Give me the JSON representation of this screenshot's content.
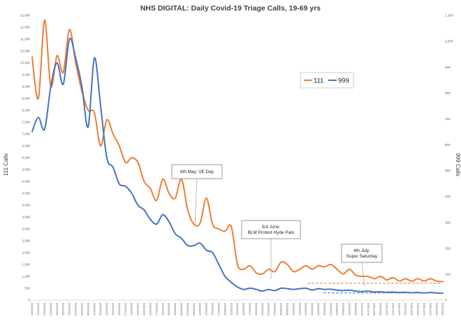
{
  "chart_data": {
    "type": "line",
    "title": "NHS DIGITAL: Daily Covid-19 Triage Calls, 19-69 yrs",
    "ylabel_left": "111 Calls",
    "ylabel_right": "999 Calls",
    "ylim_left": [
      0,
      12000
    ],
    "ylim_right": [
      0,
      1100
    ],
    "yticks_left": [
      "0",
      "500",
      "1,000",
      "1,500",
      "2,000",
      "2,500",
      "3,000",
      "3,500",
      "4,000",
      "4,500",
      "5,000",
      "5,500",
      "6,000",
      "6,500",
      "7,000",
      "7,500",
      "8,000",
      "8,500",
      "9,000",
      "9,500",
      "10,000",
      "10,500",
      "11,000",
      "11,500",
      "12,000"
    ],
    "yticks_right": [
      "0",
      "100",
      "200",
      "300",
      "400",
      "500",
      "600",
      "700",
      "800",
      "900",
      "1,000",
      "1,100"
    ],
    "x": [
      "18/03/2020",
      "20/03/2020",
      "22/03/2020",
      "24/03/2020",
      "26/03/2020",
      "28/03/2020",
      "30/03/2020",
      "01/04/2020",
      "03/04/2020",
      "05/04/2020",
      "07/04/2020",
      "09/04/2020",
      "11/04/2020",
      "13/04/2020",
      "15/04/2020",
      "17/04/2020",
      "19/04/2020",
      "21/04/2020",
      "23/04/2020",
      "25/04/2020",
      "27/04/2020",
      "29/04/2020",
      "01/05/2020",
      "03/05/2020",
      "05/05/2020",
      "07/05/2020",
      "09/05/2020",
      "11/05/2020",
      "13/05/2020",
      "15/05/2020",
      "17/05/2020",
      "19/05/2020",
      "21/05/2020",
      "23/05/2020",
      "25/05/2020",
      "27/05/2020",
      "29/05/2020",
      "31/05/2020",
      "02/06/2020",
      "04/06/2020",
      "06/06/2020",
      "08/06/2020",
      "10/06/2020",
      "12/06/2020",
      "14/06/2020",
      "16/06/2020",
      "18/06/2020",
      "20/06/2020",
      "22/06/2020",
      "24/06/2020",
      "26/06/2020",
      "28/06/2020",
      "30/06/2020",
      "02/07/2020",
      "04/07/2020",
      "06/07/2020",
      "08/07/2020",
      "10/07/2020",
      "12/07/2020",
      "14/07/2020",
      "16/07/2020",
      "18/07/2020",
      "20/07/2020",
      "22/07/2020",
      "24/07/2020",
      "26/07/2020",
      "28/07/2020"
    ],
    "series": [
      {
        "name": "111",
        "axis": "left",
        "color": "#ED7D31",
        "values": [
          10250,
          8500,
          11800,
          9000,
          10300,
          9600,
          11400,
          10000,
          8800,
          8000,
          7900,
          6500,
          7600,
          7000,
          6500,
          5800,
          6000,
          5800,
          5000,
          4700,
          4200,
          5100,
          4500,
          4300,
          5100,
          3800,
          3200,
          3250,
          4300,
          3200,
          3000,
          2900,
          3100,
          1500,
          1300,
          1450,
          1150,
          1100,
          1300,
          1200,
          1600,
          1500,
          1200,
          1300,
          1450,
          1300,
          1450,
          1400,
          1500,
          1300,
          1100,
          1300,
          1050,
          1000,
          1000,
          900,
          1000,
          850,
          950,
          800,
          900,
          800,
          900,
          800,
          900,
          800,
          780
        ],
        "baseline": 710
      },
      {
        "name": "999",
        "axis": "left",
        "color": "#4472C4",
        "values": [
          7100,
          7700,
          7200,
          9000,
          10000,
          9100,
          11000,
          10200,
          9000,
          7300,
          10200,
          8200,
          6000,
          5600,
          4900,
          4800,
          4500,
          4000,
          3800,
          3400,
          3200,
          3600,
          3300,
          2800,
          2600,
          2300,
          2300,
          2400,
          2100,
          2000,
          1500,
          1000,
          750,
          550,
          450,
          500,
          450,
          380,
          450,
          400,
          500,
          480,
          450,
          480,
          500,
          420,
          480,
          450,
          460,
          420,
          400,
          420,
          380,
          360,
          380,
          340,
          350,
          330,
          340,
          320,
          330,
          310,
          320,
          300,
          320,
          300,
          290
        ],
        "baseline": 300
      }
    ],
    "legend": {
      "position": "upper-right",
      "entries": [
        "111",
        "999"
      ]
    },
    "annotations": [
      {
        "lines": [
          "8th May: VE Day"
        ]
      },
      {
        "lines": [
          "3rd June:",
          "BLM Protest Hyde Park"
        ]
      },
      {
        "lines": [
          "4th July:",
          "Super Saturday"
        ]
      }
    ],
    "grid": false
  }
}
